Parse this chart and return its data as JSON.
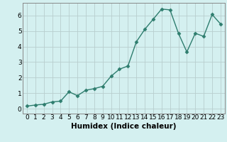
{
  "x": [
    0,
    1,
    2,
    3,
    4,
    5,
    6,
    7,
    8,
    9,
    10,
    11,
    12,
    13,
    14,
    15,
    16,
    17,
    18,
    19,
    20,
    21,
    22,
    23
  ],
  "y": [
    0.18,
    0.25,
    0.3,
    0.45,
    0.5,
    1.1,
    0.85,
    1.2,
    1.3,
    1.45,
    2.1,
    2.55,
    2.75,
    4.3,
    5.1,
    5.75,
    6.4,
    6.35,
    4.85,
    3.65,
    4.85,
    4.65,
    6.05,
    5.45
  ],
  "line_color": "#2e7d6e",
  "marker": "D",
  "markersize": 2.5,
  "linewidth": 1.0,
  "xlabel": "Humidex (Indice chaleur)",
  "xlabel_fontsize": 7.5,
  "xlim": [
    -0.5,
    23.5
  ],
  "ylim": [
    -0.3,
    6.8
  ],
  "yticks": [
    0,
    1,
    2,
    3,
    4,
    5,
    6
  ],
  "xticks": [
    0,
    1,
    2,
    3,
    4,
    5,
    6,
    7,
    8,
    9,
    10,
    11,
    12,
    13,
    14,
    15,
    16,
    17,
    18,
    19,
    20,
    21,
    22,
    23
  ],
  "bg_color": "#d4f0f0",
  "grid_color": "#b8cece",
  "tick_fontsize": 6.5,
  "spine_color": "#888888"
}
